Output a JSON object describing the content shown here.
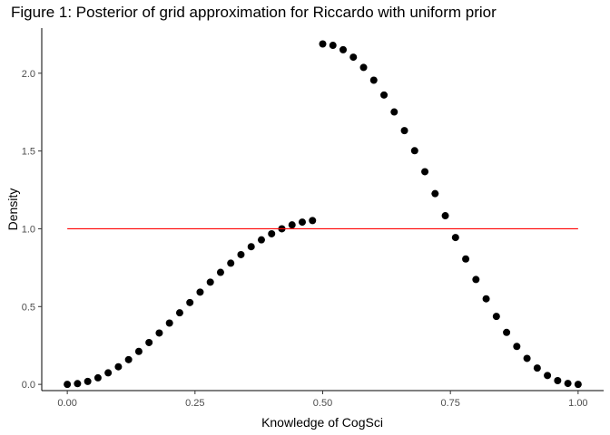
{
  "chart_data": {
    "type": "scatter",
    "title": "Figure 1: Posterior of grid approximation for Riccardo with uniform prior",
    "xlabel": "Knowledge of CogSci",
    "ylabel": "Density",
    "xlim": [
      -0.05,
      1.05
    ],
    "ylim": [
      -0.04,
      2.29
    ],
    "x_ticks": [
      0,
      0.25,
      0.5,
      0.75,
      1
    ],
    "x_tick_labels": [
      "0.00",
      "0.25",
      "0.50",
      "0.75",
      "1.00"
    ],
    "y_ticks": [
      0,
      0.5,
      1,
      1.5,
      2
    ],
    "y_tick_labels": [
      "0.0",
      "0.5",
      "1.0",
      "1.5",
      "2.0"
    ],
    "grid": false,
    "series": [
      {
        "mark": "points",
        "color": "#000000",
        "x": [
          0.0,
          0.02,
          0.04,
          0.06,
          0.08,
          0.1,
          0.12,
          0.14,
          0.16,
          0.18,
          0.2,
          0.22,
          0.24,
          0.26,
          0.28,
          0.3,
          0.32,
          0.34,
          0.36,
          0.38,
          0.4,
          0.42,
          0.44,
          0.46,
          0.48,
          0.5,
          0.52,
          0.54,
          0.56,
          0.58,
          0.6,
          0.62,
          0.64,
          0.66,
          0.68,
          0.7,
          0.72,
          0.74,
          0.76,
          0.78,
          0.8,
          0.82,
          0.84,
          0.86,
          0.88,
          0.9,
          0.92,
          0.94,
          0.96,
          0.98,
          1.0
        ],
        "y": [
          0.0,
          0.005,
          0.019,
          0.042,
          0.074,
          0.113,
          0.159,
          0.212,
          0.269,
          0.33,
          0.394,
          0.46,
          0.526,
          0.593,
          0.657,
          0.72,
          0.779,
          0.834,
          0.885,
          0.929,
          0.968,
          1.0,
          1.025,
          1.043,
          1.053,
          2.188,
          2.179,
          2.151,
          2.103,
          2.037,
          1.955,
          1.86,
          1.751,
          1.631,
          1.502,
          1.367,
          1.226,
          1.084,
          0.944,
          0.806,
          0.674,
          0.55,
          0.437,
          0.334,
          0.244,
          0.167,
          0.105,
          0.057,
          0.024,
          0.006,
          0.0
        ]
      },
      {
        "mark": "line",
        "color": "#ff0000",
        "x": [
          0,
          1
        ],
        "y": [
          1,
          1
        ]
      }
    ]
  }
}
